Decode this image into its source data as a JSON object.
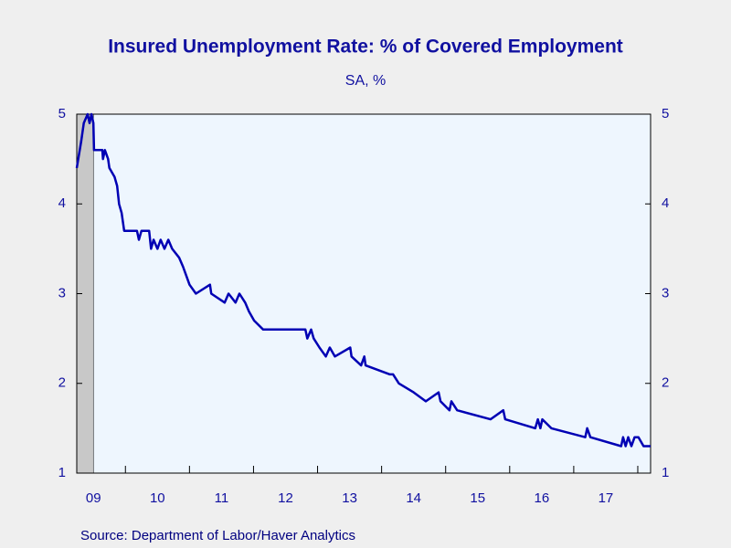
{
  "chart_data": {
    "type": "line",
    "title": "Insured Unemployment Rate: % of Covered Employment",
    "subtitle": "SA, %",
    "source": "Source:  Department of Labor/Haver Analytics",
    "x": [
      2009.24,
      2009.31,
      2009.35,
      2009.41,
      2009.44,
      2009.47,
      2009.5,
      2009.51,
      2009.64,
      2009.65,
      2009.68,
      2009.73,
      2009.75,
      2009.83,
      2009.87,
      2009.9,
      2009.94,
      2009.98,
      2010.18,
      2010.21,
      2010.25,
      2010.37,
      2010.4,
      2010.44,
      2010.5,
      2010.55,
      2010.61,
      2010.67,
      2010.73,
      2010.84,
      2010.9,
      2010.95,
      2011.0,
      2011.1,
      2011.32,
      2011.34,
      2011.55,
      2011.61,
      2011.72,
      2011.78,
      2011.87,
      2011.93,
      2012.01,
      2012.15,
      2012.81,
      2012.84,
      2012.9,
      2012.94,
      2013.03,
      2013.13,
      2013.19,
      2013.27,
      2013.51,
      2013.53,
      2013.68,
      2013.73,
      2013.75,
      2014.13,
      2014.18,
      2014.27,
      2014.5,
      2014.69,
      2014.89,
      2014.92,
      2015.06,
      2015.09,
      2015.18,
      2015.7,
      2015.9,
      2015.93,
      2016.4,
      2016.44,
      2016.48,
      2016.51,
      2016.65,
      2017.18,
      2017.21,
      2017.26,
      2017.74,
      2017.77,
      2017.81,
      2017.85,
      2017.9,
      2017.95,
      2018.01,
      2018.09,
      2018.2
    ],
    "series": [
      {
        "name": "Insured Unemployment Rate",
        "color": "#0000b4",
        "values": [
          4.4,
          4.7,
          4.9,
          5.0,
          4.9,
          5.0,
          4.9,
          4.6,
          4.6,
          4.5,
          4.6,
          4.5,
          4.4,
          4.3,
          4.2,
          4.0,
          3.9,
          3.7,
          3.7,
          3.6,
          3.7,
          3.7,
          3.5,
          3.6,
          3.5,
          3.6,
          3.5,
          3.6,
          3.5,
          3.4,
          3.3,
          3.2,
          3.1,
          3.0,
          3.1,
          3.0,
          2.9,
          3.0,
          2.9,
          3.0,
          2.9,
          2.8,
          2.7,
          2.6,
          2.6,
          2.5,
          2.6,
          2.5,
          2.4,
          2.3,
          2.4,
          2.3,
          2.4,
          2.3,
          2.2,
          2.3,
          2.2,
          2.1,
          2.1,
          2.0,
          1.9,
          1.8,
          1.9,
          1.8,
          1.7,
          1.8,
          1.7,
          1.6,
          1.7,
          1.6,
          1.5,
          1.6,
          1.5,
          1.6,
          1.5,
          1.4,
          1.5,
          1.4,
          1.3,
          1.4,
          1.3,
          1.4,
          1.3,
          1.4,
          1.4,
          1.3,
          1.3
        ]
      }
    ],
    "recession": [
      2009.24,
      2009.5
    ],
    "xlim": [
      2009.24,
      2018.2
    ],
    "xticks": [
      {
        "value": 2009.5,
        "label": "09"
      },
      {
        "value": 2010.5,
        "label": "10"
      },
      {
        "value": 2011.5,
        "label": "11"
      },
      {
        "value": 2012.5,
        "label": "12"
      },
      {
        "value": 2013.5,
        "label": "13"
      },
      {
        "value": 2014.5,
        "label": "14"
      },
      {
        "value": 2015.5,
        "label": "15"
      },
      {
        "value": 2016.5,
        "label": "16"
      },
      {
        "value": 2017.5,
        "label": "17"
      }
    ],
    "ylim": [
      1,
      5
    ],
    "yticks": [
      1,
      2,
      3,
      4,
      5
    ],
    "y2lim": [
      1,
      5
    ],
    "y2ticks": [
      1,
      2,
      3,
      4,
      5
    ]
  }
}
